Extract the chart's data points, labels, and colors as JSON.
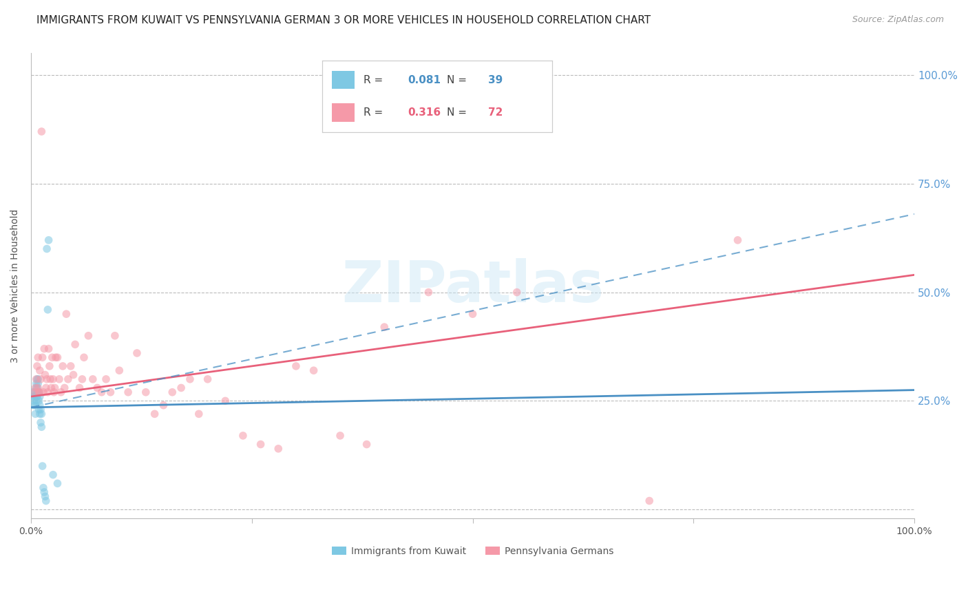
{
  "title": "IMMIGRANTS FROM KUWAIT VS PENNSYLVANIA GERMAN 3 OR MORE VEHICLES IN HOUSEHOLD CORRELATION CHART",
  "source": "Source: ZipAtlas.com",
  "ylabel": "3 or more Vehicles in Household",
  "ytick_labels": [
    "",
    "25.0%",
    "50.0%",
    "75.0%",
    "100.0%"
  ],
  "ytick_values": [
    0.0,
    0.25,
    0.5,
    0.75,
    1.0
  ],
  "xlim": [
    0.0,
    1.0
  ],
  "ylim": [
    -0.02,
    1.05
  ],
  "watermark_text": "ZIPatlas",
  "blue_R": "0.081",
  "blue_N": "39",
  "pink_R": "0.316",
  "pink_N": "72",
  "blue_scatter_x": [
    0.002,
    0.003,
    0.003,
    0.004,
    0.004,
    0.005,
    0.005,
    0.005,
    0.006,
    0.006,
    0.006,
    0.006,
    0.007,
    0.007,
    0.007,
    0.007,
    0.008,
    0.008,
    0.008,
    0.009,
    0.009,
    0.009,
    0.01,
    0.01,
    0.01,
    0.011,
    0.011,
    0.012,
    0.012,
    0.013,
    0.014,
    0.015,
    0.016,
    0.017,
    0.018,
    0.019,
    0.02,
    0.025,
    0.03
  ],
  "blue_scatter_y": [
    0.27,
    0.26,
    0.24,
    0.25,
    0.26,
    0.27,
    0.24,
    0.22,
    0.25,
    0.26,
    0.28,
    0.29,
    0.27,
    0.26,
    0.3,
    0.28,
    0.29,
    0.27,
    0.3,
    0.27,
    0.25,
    0.23,
    0.26,
    0.24,
    0.22,
    0.23,
    0.2,
    0.22,
    0.19,
    0.1,
    0.05,
    0.04,
    0.03,
    0.02,
    0.6,
    0.46,
    0.62,
    0.08,
    0.06
  ],
  "pink_scatter_x": [
    0.004,
    0.005,
    0.006,
    0.007,
    0.008,
    0.008,
    0.009,
    0.01,
    0.01,
    0.011,
    0.012,
    0.013,
    0.014,
    0.015,
    0.016,
    0.017,
    0.018,
    0.019,
    0.02,
    0.021,
    0.022,
    0.023,
    0.024,
    0.025,
    0.026,
    0.027,
    0.028,
    0.03,
    0.032,
    0.034,
    0.036,
    0.038,
    0.04,
    0.042,
    0.045,
    0.048,
    0.05,
    0.055,
    0.058,
    0.06,
    0.065,
    0.07,
    0.075,
    0.08,
    0.085,
    0.09,
    0.095,
    0.1,
    0.11,
    0.12,
    0.13,
    0.14,
    0.15,
    0.16,
    0.17,
    0.18,
    0.19,
    0.2,
    0.22,
    0.24,
    0.26,
    0.28,
    0.3,
    0.32,
    0.35,
    0.38,
    0.4,
    0.45,
    0.5,
    0.55,
    0.7,
    0.8
  ],
  "pink_scatter_y": [
    0.27,
    0.28,
    0.3,
    0.33,
    0.35,
    0.28,
    0.27,
    0.32,
    0.27,
    0.3,
    0.87,
    0.35,
    0.27,
    0.37,
    0.31,
    0.28,
    0.3,
    0.27,
    0.37,
    0.33,
    0.3,
    0.28,
    0.35,
    0.3,
    0.27,
    0.28,
    0.35,
    0.35,
    0.3,
    0.27,
    0.33,
    0.28,
    0.45,
    0.3,
    0.33,
    0.31,
    0.38,
    0.28,
    0.3,
    0.35,
    0.4,
    0.3,
    0.28,
    0.27,
    0.3,
    0.27,
    0.4,
    0.32,
    0.27,
    0.36,
    0.27,
    0.22,
    0.24,
    0.27,
    0.28,
    0.3,
    0.22,
    0.3,
    0.25,
    0.17,
    0.15,
    0.14,
    0.33,
    0.32,
    0.17,
    0.15,
    0.42,
    0.5,
    0.45,
    0.5,
    0.02,
    0.62
  ],
  "blue_line": [
    0.0,
    1.0,
    0.235,
    0.275
  ],
  "pink_line": [
    0.0,
    1.0,
    0.26,
    0.54
  ],
  "dash_line": [
    0.0,
    1.0,
    0.235,
    0.68
  ],
  "scatter_size": 70,
  "scatter_alpha": 0.55,
  "scatter_color_blue": "#7EC8E3",
  "scatter_color_pink": "#F599A8",
  "line_color_blue": "#4A90C4",
  "line_color_pink": "#E8607A",
  "grid_color": "#BBBBBB",
  "right_axis_color": "#5B9BD5",
  "title_fontsize": 11,
  "axis_label_fontsize": 10,
  "tick_fontsize": 10
}
